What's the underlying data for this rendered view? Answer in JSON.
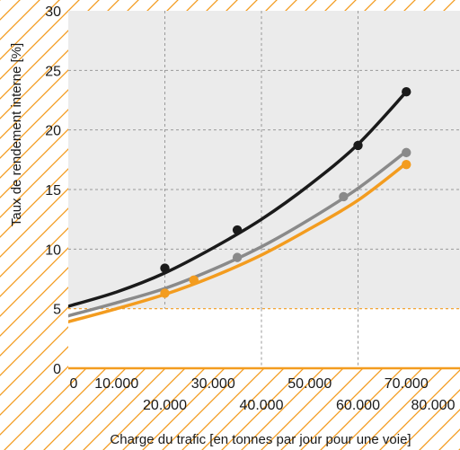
{
  "chart_data": {
    "type": "line",
    "xlabel": "Charge du trafic [en tonnes par jour pour une voie]",
    "ylabel": "Taux de rendement interne [%]",
    "xlim": [
      0,
      80000
    ],
    "ylim": [
      0,
      30
    ],
    "x_ticks_upper": [
      "0",
      "10.000",
      "30.000",
      "50.000",
      "70.000"
    ],
    "x_ticks_lower": [
      "20.000",
      "40.000",
      "60.000",
      "80.000"
    ],
    "y_ticks": [
      "0",
      "5",
      "10",
      "15",
      "20",
      "25",
      "30"
    ],
    "threshold": 5,
    "grid": true,
    "colors": {
      "background": "#ebebeb",
      "hatch": "#f39c1f",
      "grid": "#9a9a9a",
      "threshold": "#f39c1f"
    },
    "series": [
      {
        "color": "#1a1a1a",
        "curve": [
          [
            0,
            5.2
          ],
          [
            10000,
            6.4
          ],
          [
            20000,
            8.0
          ],
          [
            30000,
            10.1
          ],
          [
            40000,
            12.5
          ],
          [
            50000,
            15.4
          ],
          [
            60000,
            18.8
          ],
          [
            70000,
            23.2
          ]
        ],
        "points": [
          [
            20000,
            8.4
          ],
          [
            35000,
            11.6
          ],
          [
            60000,
            18.7
          ],
          [
            70000,
            23.2
          ]
        ]
      },
      {
        "color": "#8a8a8a",
        "curve": [
          [
            0,
            4.4
          ],
          [
            10000,
            5.5
          ],
          [
            20000,
            6.7
          ],
          [
            30000,
            8.3
          ],
          [
            40000,
            10.2
          ],
          [
            50000,
            12.5
          ],
          [
            60000,
            15.1
          ],
          [
            70000,
            18.2
          ]
        ],
        "points": [
          [
            35000,
            9.3
          ],
          [
            57000,
            14.4
          ],
          [
            70000,
            18.1
          ]
        ]
      },
      {
        "color": "#f39c1f",
        "curve": [
          [
            0,
            3.9
          ],
          [
            10000,
            5.0
          ],
          [
            20000,
            6.2
          ],
          [
            30000,
            7.7
          ],
          [
            40000,
            9.5
          ],
          [
            50000,
            11.7
          ],
          [
            60000,
            14.1
          ],
          [
            70000,
            17.2
          ]
        ],
        "points": [
          [
            20000,
            6.3
          ],
          [
            26000,
            7.4
          ],
          [
            70000,
            17.1
          ]
        ]
      }
    ]
  }
}
